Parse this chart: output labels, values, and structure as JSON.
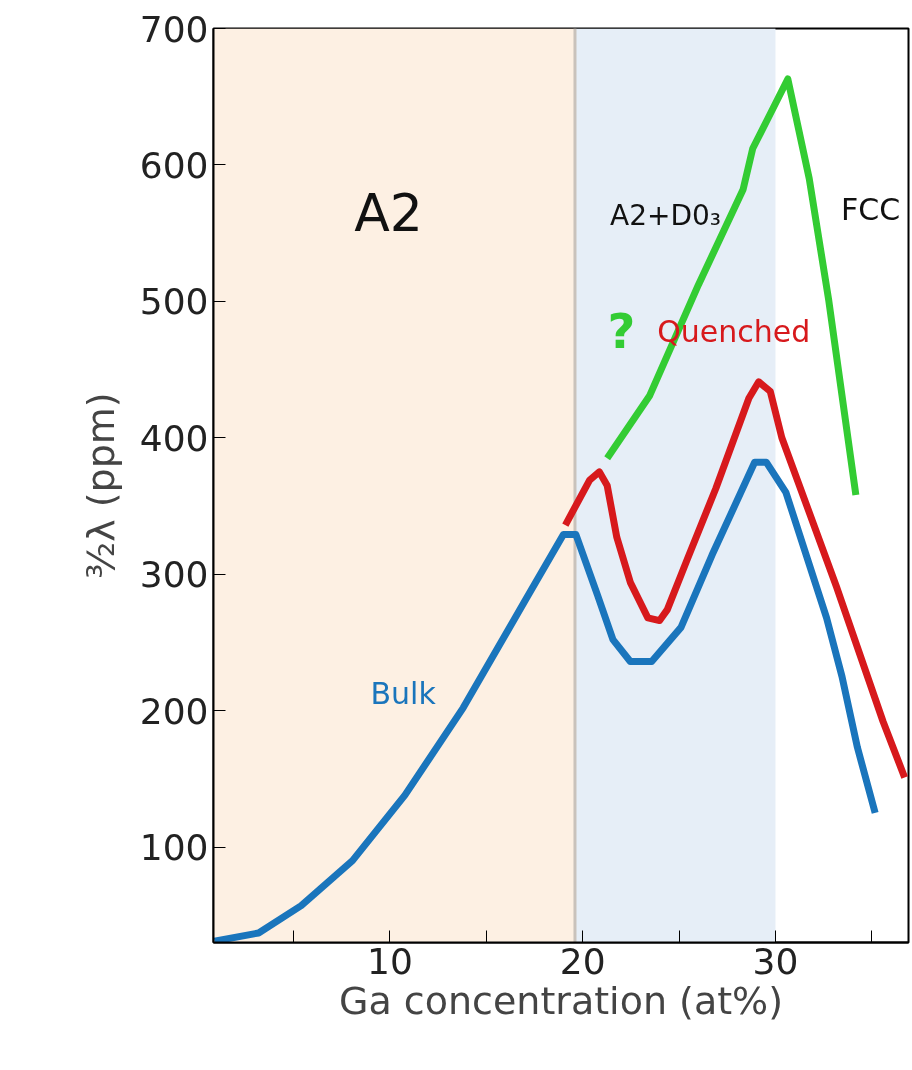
{
  "chart_data": {
    "type": "line",
    "xlabel": "Ga concentration (at%)",
    "ylabel": "³⁄₂λ (ppm)",
    "xlim": [
      0.85,
      36.9
    ],
    "ylim": [
      30,
      700
    ],
    "xticks": [
      {
        "value": 5,
        "label": null
      },
      10,
      {
        "value": 15,
        "label": null
      },
      20,
      {
        "value": 25,
        "label": null
      },
      30,
      {
        "value": 35,
        "label": null
      }
    ],
    "yticks": [
      100,
      200,
      300,
      400,
      500,
      600,
      700
    ],
    "grid": false,
    "marker": "none",
    "line_style": "solid",
    "series": [
      {
        "name": "Bulk",
        "color": "#1a75bc",
        "x": [
          0.9,
          3.19,
          5.4,
          8.06,
          10.78,
          13.8,
          17.03,
          19.0,
          19.65,
          20.76,
          21.57,
          22.47,
          23.58,
          25.1,
          26.71,
          28.92,
          29.53,
          30.54,
          32.65,
          33.45,
          34.25,
          35.17
        ],
        "values": [
          31,
          37,
          57,
          90,
          138,
          202,
          281,
          329,
          329,
          285,
          252,
          236,
          236,
          261,
          314,
          382,
          382,
          360,
          268,
          225,
          173,
          125
        ]
      },
      {
        "name": "Quenched",
        "color": "#d7191c",
        "x": [
          19.1,
          20.36,
          20.86,
          21.27,
          21.77,
          22.47,
          23.38,
          23.99,
          24.39,
          25.4,
          26.91,
          28.62,
          29.13,
          29.73,
          30.33,
          33.16,
          35.58,
          36.7
        ],
        "values": [
          336,
          369,
          375,
          365,
          327,
          294,
          268,
          266,
          274,
          310,
          363,
          429,
          441,
          434,
          400,
          291,
          192,
          151
        ]
      },
      {
        "color": "#33cc33",
        "x": [
          21.27,
          23.48,
          26.0,
          28.32,
          28.82,
          30.64,
          31.75,
          32.76,
          34.17
        ],
        "values": [
          385,
          431,
          512,
          582,
          612,
          663,
          590,
          501,
          358
        ]
      }
    ],
    "bands": [
      {
        "axis": "x",
        "from": 0.85,
        "to": 19.6,
        "color": "#fdf0e3"
      },
      {
        "axis": "x",
        "from": 19.6,
        "to": 30,
        "color": "#e6eef7"
      }
    ],
    "ref_lines": [
      {
        "axis": "x",
        "value": 19.6,
        "color": "#c9c2bb"
      }
    ],
    "annotations": [
      "A2",
      "A2+D0₃",
      "FCC",
      "?"
    ]
  }
}
